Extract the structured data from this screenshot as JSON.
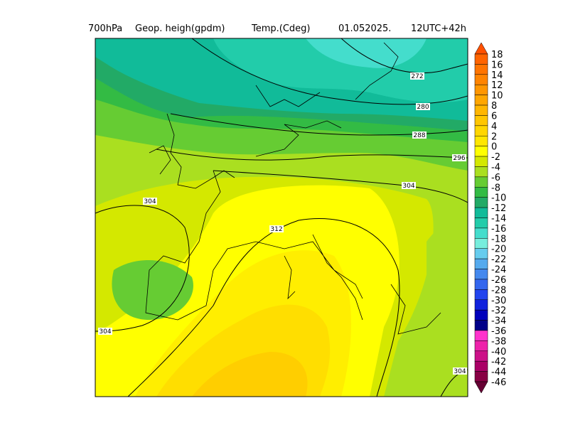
{
  "title": {
    "level": "700hPa",
    "field1": "Geop. heigh(gpdm)",
    "field2": "Temp.(Cdeg)",
    "date": "01.052025.",
    "run": "12UTC+42h"
  },
  "contour_labels": [
    272,
    280,
    288,
    296,
    304,
    304,
    312,
    304,
    304
  ],
  "colorbar": {
    "labels": [
      18,
      16,
      14,
      12,
      10,
      8,
      6,
      4,
      2,
      0,
      -2,
      -4,
      -6,
      -8,
      -10,
      -12,
      -14,
      -16,
      -18,
      -20,
      -22,
      -24,
      -26,
      -28,
      -30,
      -32,
      -34,
      -36,
      -38,
      -40,
      -42,
      -44,
      -46
    ],
    "colors": [
      "#ff5000",
      "#ff6400",
      "#ff7400",
      "#ff8400",
      "#ff9600",
      "#ffa600",
      "#ffb600",
      "#ffc600",
      "#ffd600",
      "#ffe600",
      "#ffff00",
      "#d4e800",
      "#aadf20",
      "#66cc33",
      "#33bb44",
      "#22aa66",
      "#11bb99",
      "#22ccaa",
      "#44ddcc",
      "#77eedd",
      "#66ccee",
      "#55aaee",
      "#4488ee",
      "#3366ee",
      "#2244ee",
      "#1122dd",
      "#0000bb",
      "#000088",
      "#ff33cc",
      "#ee22aa",
      "#cc1188",
      "#aa0066",
      "#880044",
      "#660033"
    ]
  }
}
